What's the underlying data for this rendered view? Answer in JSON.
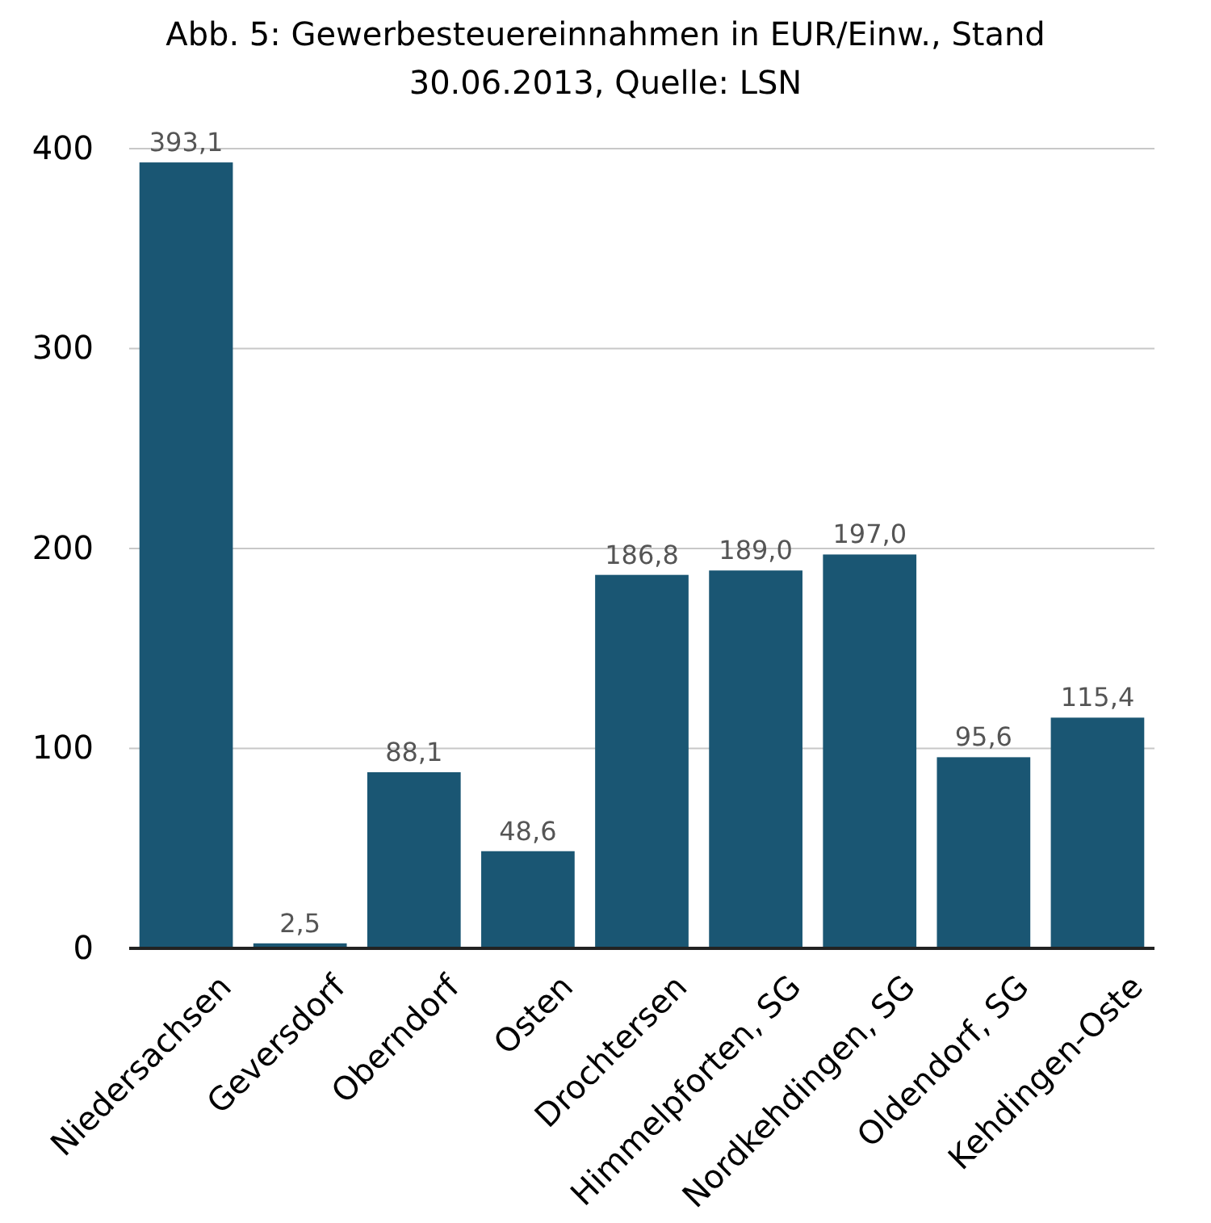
{
  "chart_data": {
    "type": "bar",
    "title": "Abb. 5: Gewerbesteuereinnahmen in EUR/Einw., Stand 30.06.2013, Quelle: LSN",
    "categories": [
      "Niedersachsen",
      "Geversdorf",
      "Oberndorf",
      "Osten",
      "Drochtersen",
      "Himmelpforten, SG",
      "Nordkehdingen, SG",
      "Oldendorf, SG",
      "Kehdingen-Oste"
    ],
    "values": [
      393.1,
      2.5,
      88.1,
      48.6,
      186.8,
      189.0,
      197.0,
      95.6,
      115.4
    ],
    "value_labels": [
      "393,1",
      "2,5",
      "88,1",
      "48,6",
      "186,8",
      "189,0",
      "197,0",
      "95,6",
      "115,4"
    ],
    "color": "#1a5673",
    "ylim": [
      0,
      400
    ],
    "yticks": [
      0,
      100,
      200,
      300,
      400
    ],
    "grid": "y"
  }
}
